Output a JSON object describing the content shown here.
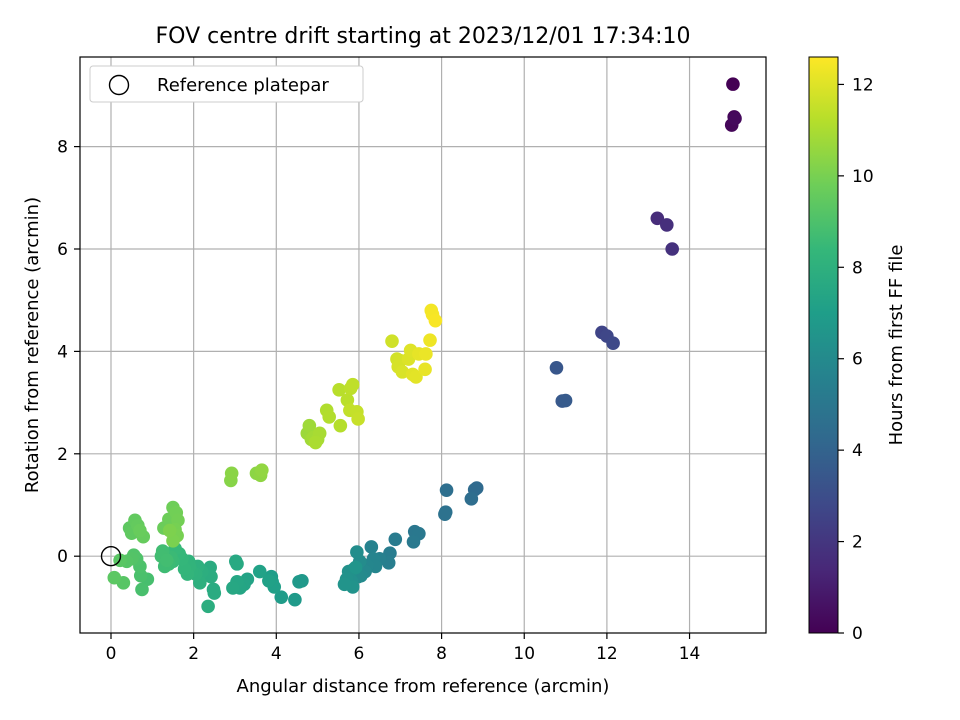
{
  "chart_data": {
    "type": "scatter",
    "title": "FOV centre drift starting at 2023/12/01 17:34:10",
    "xlabel": "Angular distance from reference (arcmin)",
    "ylabel": "Rotation from reference (arcmin)",
    "xlim": [
      -0.75,
      15.85
    ],
    "ylim": [
      -1.5,
      9.75
    ],
    "xticks": [
      0,
      2,
      4,
      6,
      8,
      10,
      12,
      14
    ],
    "yticks": [
      0,
      2,
      4,
      6,
      8
    ],
    "grid": true,
    "legend": {
      "label": "Reference platepar",
      "placement": "top-left",
      "marker": "open-circle"
    },
    "reference_point": {
      "x": 0,
      "y": 0
    },
    "colorbar": {
      "label": "Hours from first FF file",
      "colormap": "viridis",
      "min": 0,
      "max": 12.6,
      "ticks": [
        0,
        2,
        4,
        6,
        8,
        10,
        12
      ]
    },
    "points": [
      {
        "x": 15.05,
        "y": 9.22,
        "hours": 0.0
      },
      {
        "x": 15.08,
        "y": 8.58,
        "hours": 0.1
      },
      {
        "x": 15.02,
        "y": 8.42,
        "hours": 0.2
      },
      {
        "x": 15.1,
        "y": 8.55,
        "hours": 0.3
      },
      {
        "x": 13.22,
        "y": 6.6,
        "hours": 1.6
      },
      {
        "x": 13.45,
        "y": 6.47,
        "hours": 1.7
      },
      {
        "x": 13.58,
        "y": 6.0,
        "hours": 1.8
      },
      {
        "x": 11.88,
        "y": 4.37,
        "hours": 2.6
      },
      {
        "x": 12.0,
        "y": 4.3,
        "hours": 2.7
      },
      {
        "x": 12.15,
        "y": 4.16,
        "hours": 2.8
      },
      {
        "x": 10.78,
        "y": 3.68,
        "hours": 3.4
      },
      {
        "x": 10.92,
        "y": 3.03,
        "hours": 3.5
      },
      {
        "x": 11.0,
        "y": 3.04,
        "hours": 3.6
      },
      {
        "x": 8.85,
        "y": 1.33,
        "hours": 4.3
      },
      {
        "x": 8.8,
        "y": 1.3,
        "hours": 4.35
      },
      {
        "x": 8.12,
        "y": 1.29,
        "hours": 4.6
      },
      {
        "x": 8.72,
        "y": 1.12,
        "hours": 4.5
      },
      {
        "x": 8.1,
        "y": 0.86,
        "hours": 4.7
      },
      {
        "x": 8.08,
        "y": 0.82,
        "hours": 4.75
      },
      {
        "x": 7.35,
        "y": 0.48,
        "hours": 5.0
      },
      {
        "x": 7.45,
        "y": 0.44,
        "hours": 5.05
      },
      {
        "x": 7.32,
        "y": 0.28,
        "hours": 5.1
      },
      {
        "x": 6.88,
        "y": 0.33,
        "hours": 5.2
      },
      {
        "x": 6.75,
        "y": 0.06,
        "hours": 5.3
      },
      {
        "x": 6.72,
        "y": -0.13,
        "hours": 5.4
      },
      {
        "x": 6.5,
        "y": -0.05,
        "hours": 5.5
      },
      {
        "x": 6.3,
        "y": 0.18,
        "hours": 5.6
      },
      {
        "x": 6.35,
        "y": -0.05,
        "hours": 5.7
      },
      {
        "x": 6.4,
        "y": -0.2,
        "hours": 5.75
      },
      {
        "x": 6.2,
        "y": -0.18,
        "hours": 5.8
      },
      {
        "x": 6.15,
        "y": -0.3,
        "hours": 5.9
      },
      {
        "x": 6.05,
        "y": -0.38,
        "hours": 6.0
      },
      {
        "x": 5.98,
        "y": -0.4,
        "hours": 6.05
      },
      {
        "x": 6.02,
        "y": -0.1,
        "hours": 6.1
      },
      {
        "x": 5.95,
        "y": 0.08,
        "hours": 6.15
      },
      {
        "x": 5.88,
        "y": -0.25,
        "hours": 6.2
      },
      {
        "x": 5.82,
        "y": -0.48,
        "hours": 6.3
      },
      {
        "x": 5.75,
        "y": -0.3,
        "hours": 6.35
      },
      {
        "x": 5.7,
        "y": -0.45,
        "hours": 6.4
      },
      {
        "x": 5.85,
        "y": -0.6,
        "hours": 6.45
      },
      {
        "x": 5.65,
        "y": -0.55,
        "hours": 6.5
      },
      {
        "x": 5.92,
        "y": -0.22,
        "hours": 6.55
      },
      {
        "x": 4.62,
        "y": -0.48,
        "hours": 6.7
      },
      {
        "x": 4.55,
        "y": -0.5,
        "hours": 6.75
      },
      {
        "x": 4.45,
        "y": -0.85,
        "hours": 6.8
      },
      {
        "x": 4.12,
        "y": -0.8,
        "hours": 6.9
      },
      {
        "x": 3.88,
        "y": -0.4,
        "hours": 7.0
      },
      {
        "x": 3.9,
        "y": -0.5,
        "hours": 7.05
      },
      {
        "x": 3.95,
        "y": -0.6,
        "hours": 7.1
      },
      {
        "x": 3.82,
        "y": -0.48,
        "hours": 7.15
      },
      {
        "x": 3.6,
        "y": -0.3,
        "hours": 7.2
      },
      {
        "x": 3.3,
        "y": -0.45,
        "hours": 7.3
      },
      {
        "x": 3.22,
        "y": -0.55,
        "hours": 7.35
      },
      {
        "x": 3.12,
        "y": -0.62,
        "hours": 7.4
      },
      {
        "x": 3.05,
        "y": -0.5,
        "hours": 7.45
      },
      {
        "x": 2.95,
        "y": -0.62,
        "hours": 7.5
      },
      {
        "x": 3.02,
        "y": -0.1,
        "hours": 7.55
      },
      {
        "x": 3.05,
        "y": -0.15,
        "hours": 7.6
      },
      {
        "x": 2.5,
        "y": -0.72,
        "hours": 7.7
      },
      {
        "x": 2.48,
        "y": -0.65,
        "hours": 7.72
      },
      {
        "x": 2.4,
        "y": -0.22,
        "hours": 7.75
      },
      {
        "x": 2.42,
        "y": -0.4,
        "hours": 7.8
      },
      {
        "x": 2.35,
        "y": -0.98,
        "hours": 7.85
      },
      {
        "x": 2.2,
        "y": -0.3,
        "hours": 7.9
      },
      {
        "x": 2.15,
        "y": -0.52,
        "hours": 7.95
      },
      {
        "x": 2.1,
        "y": -0.2,
        "hours": 8.0
      },
      {
        "x": 2.05,
        "y": -0.35,
        "hours": 8.05
      },
      {
        "x": 1.95,
        "y": -0.3,
        "hours": 8.1
      },
      {
        "x": 1.88,
        "y": -0.1,
        "hours": 8.15
      },
      {
        "x": 1.9,
        "y": -0.2,
        "hours": 8.2
      },
      {
        "x": 1.85,
        "y": -0.35,
        "hours": 8.25
      },
      {
        "x": 1.78,
        "y": -0.25,
        "hours": 8.3
      },
      {
        "x": 1.72,
        "y": -0.05,
        "hours": 8.35
      },
      {
        "x": 1.65,
        "y": 0.05,
        "hours": 8.4
      },
      {
        "x": 1.55,
        "y": 0.15,
        "hours": 8.45
      },
      {
        "x": 1.5,
        "y": -0.1,
        "hours": 8.5
      },
      {
        "x": 1.45,
        "y": -0.02,
        "hours": 8.55
      },
      {
        "x": 1.4,
        "y": -0.15,
        "hours": 8.6
      },
      {
        "x": 1.3,
        "y": -0.2,
        "hours": 8.65
      },
      {
        "x": 1.25,
        "y": 0.1,
        "hours": 8.7
      },
      {
        "x": 1.22,
        "y": 0.0,
        "hours": 8.72
      },
      {
        "x": 1.35,
        "y": -0.08,
        "hours": 8.75
      },
      {
        "x": 0.88,
        "y": -0.45,
        "hours": 8.85
      },
      {
        "x": 0.75,
        "y": -0.65,
        "hours": 8.9
      },
      {
        "x": 0.72,
        "y": -0.38,
        "hours": 8.95
      },
      {
        "x": 0.7,
        "y": -0.2,
        "hours": 9.0
      },
      {
        "x": 0.62,
        "y": -0.05,
        "hours": 9.05
      },
      {
        "x": 0.55,
        "y": 0.02,
        "hours": 9.1
      },
      {
        "x": 0.5,
        "y": -0.05,
        "hours": 9.15
      },
      {
        "x": 0.38,
        "y": -0.1,
        "hours": 9.2
      },
      {
        "x": 0.3,
        "y": -0.52,
        "hours": 9.25
      },
      {
        "x": 0.22,
        "y": -0.08,
        "hours": 9.3
      },
      {
        "x": 0.08,
        "y": -0.42,
        "hours": 9.35
      },
      {
        "x": 0.45,
        "y": 0.55,
        "hours": 9.4
      },
      {
        "x": 0.5,
        "y": 0.45,
        "hours": 9.45
      },
      {
        "x": 0.58,
        "y": 0.7,
        "hours": 9.5
      },
      {
        "x": 0.65,
        "y": 0.6,
        "hours": 9.55
      },
      {
        "x": 0.78,
        "y": 0.38,
        "hours": 9.6
      },
      {
        "x": 0.7,
        "y": 0.5,
        "hours": 9.65
      },
      {
        "x": 1.28,
        "y": 0.55,
        "hours": 9.7
      },
      {
        "x": 1.4,
        "y": 0.72,
        "hours": 9.75
      },
      {
        "x": 1.5,
        "y": 0.95,
        "hours": 9.8
      },
      {
        "x": 1.58,
        "y": 0.85,
        "hours": 9.85
      },
      {
        "x": 1.62,
        "y": 0.7,
        "hours": 9.9
      },
      {
        "x": 1.55,
        "y": 0.52,
        "hours": 9.95
      },
      {
        "x": 1.6,
        "y": 0.4,
        "hours": 10.0
      },
      {
        "x": 1.5,
        "y": 0.3,
        "hours": 10.05
      },
      {
        "x": 1.42,
        "y": 0.5,
        "hours": 10.1
      },
      {
        "x": 2.9,
        "y": 1.48,
        "hours": 10.3
      },
      {
        "x": 2.92,
        "y": 1.62,
        "hours": 10.35
      },
      {
        "x": 3.52,
        "y": 1.62,
        "hours": 10.4
      },
      {
        "x": 3.62,
        "y": 1.58,
        "hours": 10.45
      },
      {
        "x": 3.65,
        "y": 1.68,
        "hours": 10.5
      },
      {
        "x": 4.75,
        "y": 2.4,
        "hours": 10.7
      },
      {
        "x": 4.8,
        "y": 2.55,
        "hours": 10.75
      },
      {
        "x": 4.85,
        "y": 2.28,
        "hours": 10.8
      },
      {
        "x": 4.9,
        "y": 2.32,
        "hours": 10.85
      },
      {
        "x": 5.0,
        "y": 2.28,
        "hours": 10.9
      },
      {
        "x": 5.05,
        "y": 2.4,
        "hours": 10.95
      },
      {
        "x": 4.95,
        "y": 2.22,
        "hours": 11.0
      },
      {
        "x": 5.22,
        "y": 2.85,
        "hours": 11.1
      },
      {
        "x": 5.28,
        "y": 2.72,
        "hours": 11.15
      },
      {
        "x": 5.55,
        "y": 2.55,
        "hours": 11.2
      },
      {
        "x": 5.52,
        "y": 3.25,
        "hours": 11.25
      },
      {
        "x": 5.72,
        "y": 3.05,
        "hours": 11.3
      },
      {
        "x": 5.8,
        "y": 3.28,
        "hours": 11.35
      },
      {
        "x": 5.85,
        "y": 3.35,
        "hours": 11.4
      },
      {
        "x": 5.78,
        "y": 2.85,
        "hours": 11.45
      },
      {
        "x": 5.95,
        "y": 2.82,
        "hours": 11.5
      },
      {
        "x": 5.98,
        "y": 2.68,
        "hours": 11.55
      },
      {
        "x": 6.8,
        "y": 4.2,
        "hours": 11.7
      },
      {
        "x": 6.92,
        "y": 3.85,
        "hours": 11.75
      },
      {
        "x": 7.0,
        "y": 3.82,
        "hours": 11.8
      },
      {
        "x": 6.95,
        "y": 3.7,
        "hours": 11.85
      },
      {
        "x": 7.05,
        "y": 3.6,
        "hours": 11.9
      },
      {
        "x": 7.2,
        "y": 3.85,
        "hours": 11.95
      },
      {
        "x": 7.25,
        "y": 4.02,
        "hours": 12.0
      },
      {
        "x": 7.3,
        "y": 3.55,
        "hours": 12.05
      },
      {
        "x": 7.38,
        "y": 3.5,
        "hours": 12.1
      },
      {
        "x": 7.45,
        "y": 3.95,
        "hours": 12.15
      },
      {
        "x": 7.6,
        "y": 3.65,
        "hours": 12.2
      },
      {
        "x": 7.62,
        "y": 3.95,
        "hours": 12.25
      },
      {
        "x": 7.72,
        "y": 4.22,
        "hours": 12.3
      },
      {
        "x": 7.75,
        "y": 4.8,
        "hours": 12.4
      },
      {
        "x": 7.78,
        "y": 4.72,
        "hours": 12.45
      },
      {
        "x": 7.85,
        "y": 4.6,
        "hours": 12.5
      }
    ]
  }
}
